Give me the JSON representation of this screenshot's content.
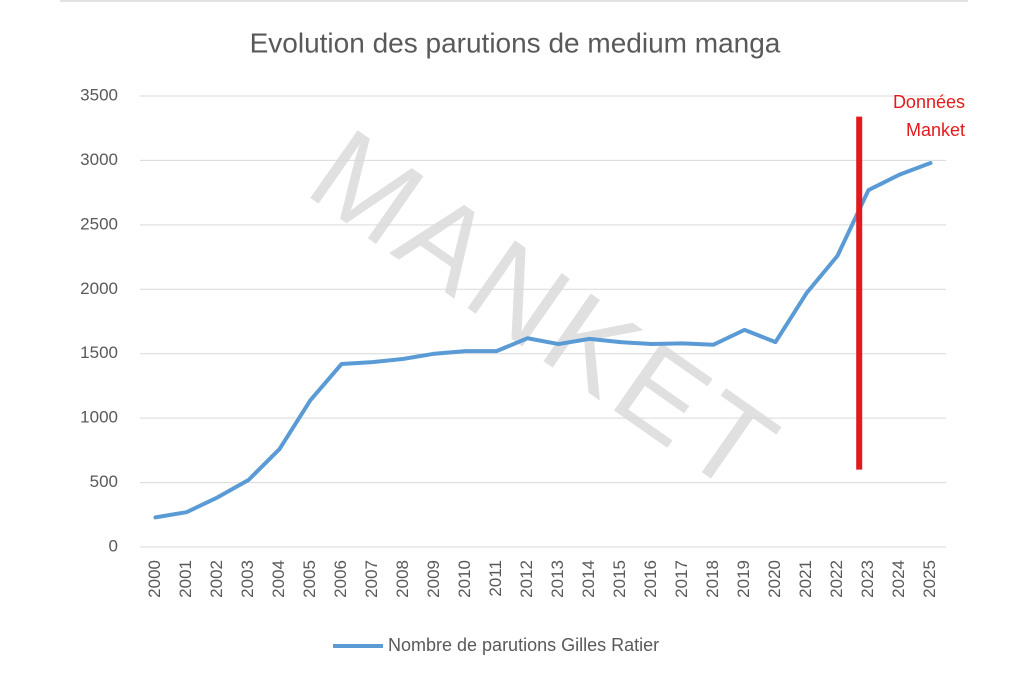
{
  "chart_data": {
    "type": "line",
    "title": "Evolution des parutions de medium manga",
    "categories": [
      "2000",
      "2001",
      "2002",
      "2003",
      "2004",
      "2005",
      "2006",
      "2007",
      "2008",
      "2009",
      "2010",
      "2011",
      "2012",
      "2013",
      "2014",
      "2015",
      "2016",
      "2017",
      "2018",
      "2019",
      "2020",
      "2021",
      "2022",
      "2023",
      "2024",
      "2025"
    ],
    "series": [
      {
        "name": "Nombre de parutions Gilles Ratier",
        "color": "#5b9bd5",
        "values": [
          230,
          270,
          385,
          520,
          760,
          1140,
          1420,
          1435,
          1460,
          1500,
          1520,
          1520,
          1620,
          1575,
          1615,
          1590,
          1575,
          1580,
          1570,
          1685,
          1590,
          1970,
          2260,
          2770,
          2890,
          2980
        ]
      }
    ],
    "ylim": [
      0,
      3500
    ],
    "yticks": [
      0,
      500,
      1000,
      1500,
      2000,
      2500,
      3000,
      3500
    ],
    "grid": true,
    "legend": "bottom",
    "annotation": {
      "lines": [
        "Données",
        "Manket"
      ],
      "color": "#e31a1c",
      "x": 22.7,
      "y": [
        600,
        3340
      ]
    },
    "watermark": "MANKET"
  }
}
